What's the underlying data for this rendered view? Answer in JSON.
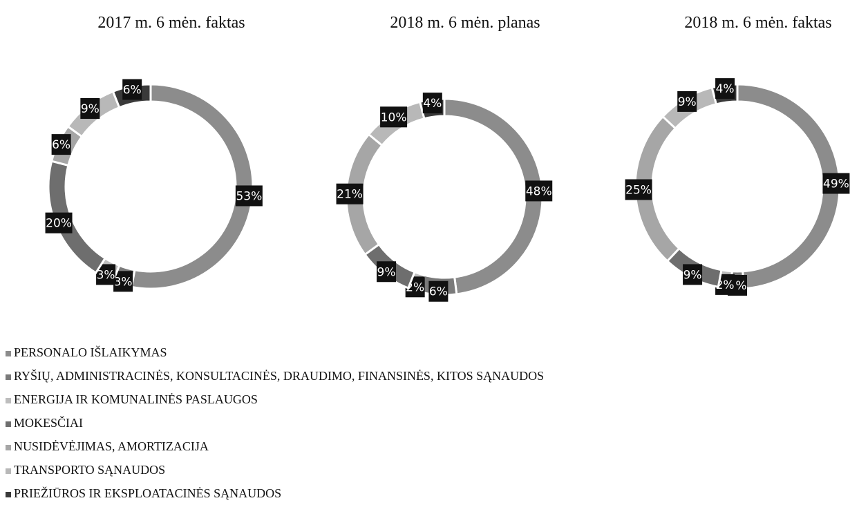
{
  "chart_data": [
    {
      "type": "pie",
      "title": "2017 m. 6 mėn. faktas",
      "values": [
        53,
        3,
        3,
        20,
        6,
        9,
        6
      ],
      "value_labels": [
        "53%",
        "3%",
        "3%",
        "20%",
        "6%",
        "9%",
        "6%"
      ]
    },
    {
      "type": "pie",
      "title": "2018 m. 6 mėn. planas",
      "values": [
        48,
        6,
        2,
        9,
        21,
        10,
        4
      ],
      "value_labels": [
        "48%",
        "6%",
        "2%",
        "9%",
        "21%",
        "10%",
        "4%"
      ]
    },
    {
      "type": "pie",
      "title": "2018 m. 6 mėn. faktas",
      "values": [
        49,
        2,
        2,
        9,
        25,
        9,
        4
      ],
      "value_labels": [
        "49%",
        "2%",
        "2%",
        "9%",
        "25%",
        "9%",
        "4%"
      ]
    }
  ],
  "legend": {
    "categories": [
      "PERSONALO IŠLAIKYMAS",
      "RYŠIŲ, ADMINISTRACINĖS, KONSULTACINĖS, DRAUDIMO, FINANSINĖS, KITOS SĄNAUDOS",
      "ENERGIJA IR KOMUNALINĖS PASLAUGOS",
      "MOKESČIAI",
      "NUSIDĖVĖJIMAS, AMORTIZACIJA",
      "TRANSPORTO SĄNAUDOS",
      "PRIEŽIŪROS IR EKSPLOATACINĖS SĄNAUDOS"
    ],
    "colors": [
      "#8c8c8c",
      "#7a7a7a",
      "#bdbdbd",
      "#6e6e6e",
      "#a6a6a6",
      "#b8b8b8",
      "#3a3a3a"
    ]
  }
}
